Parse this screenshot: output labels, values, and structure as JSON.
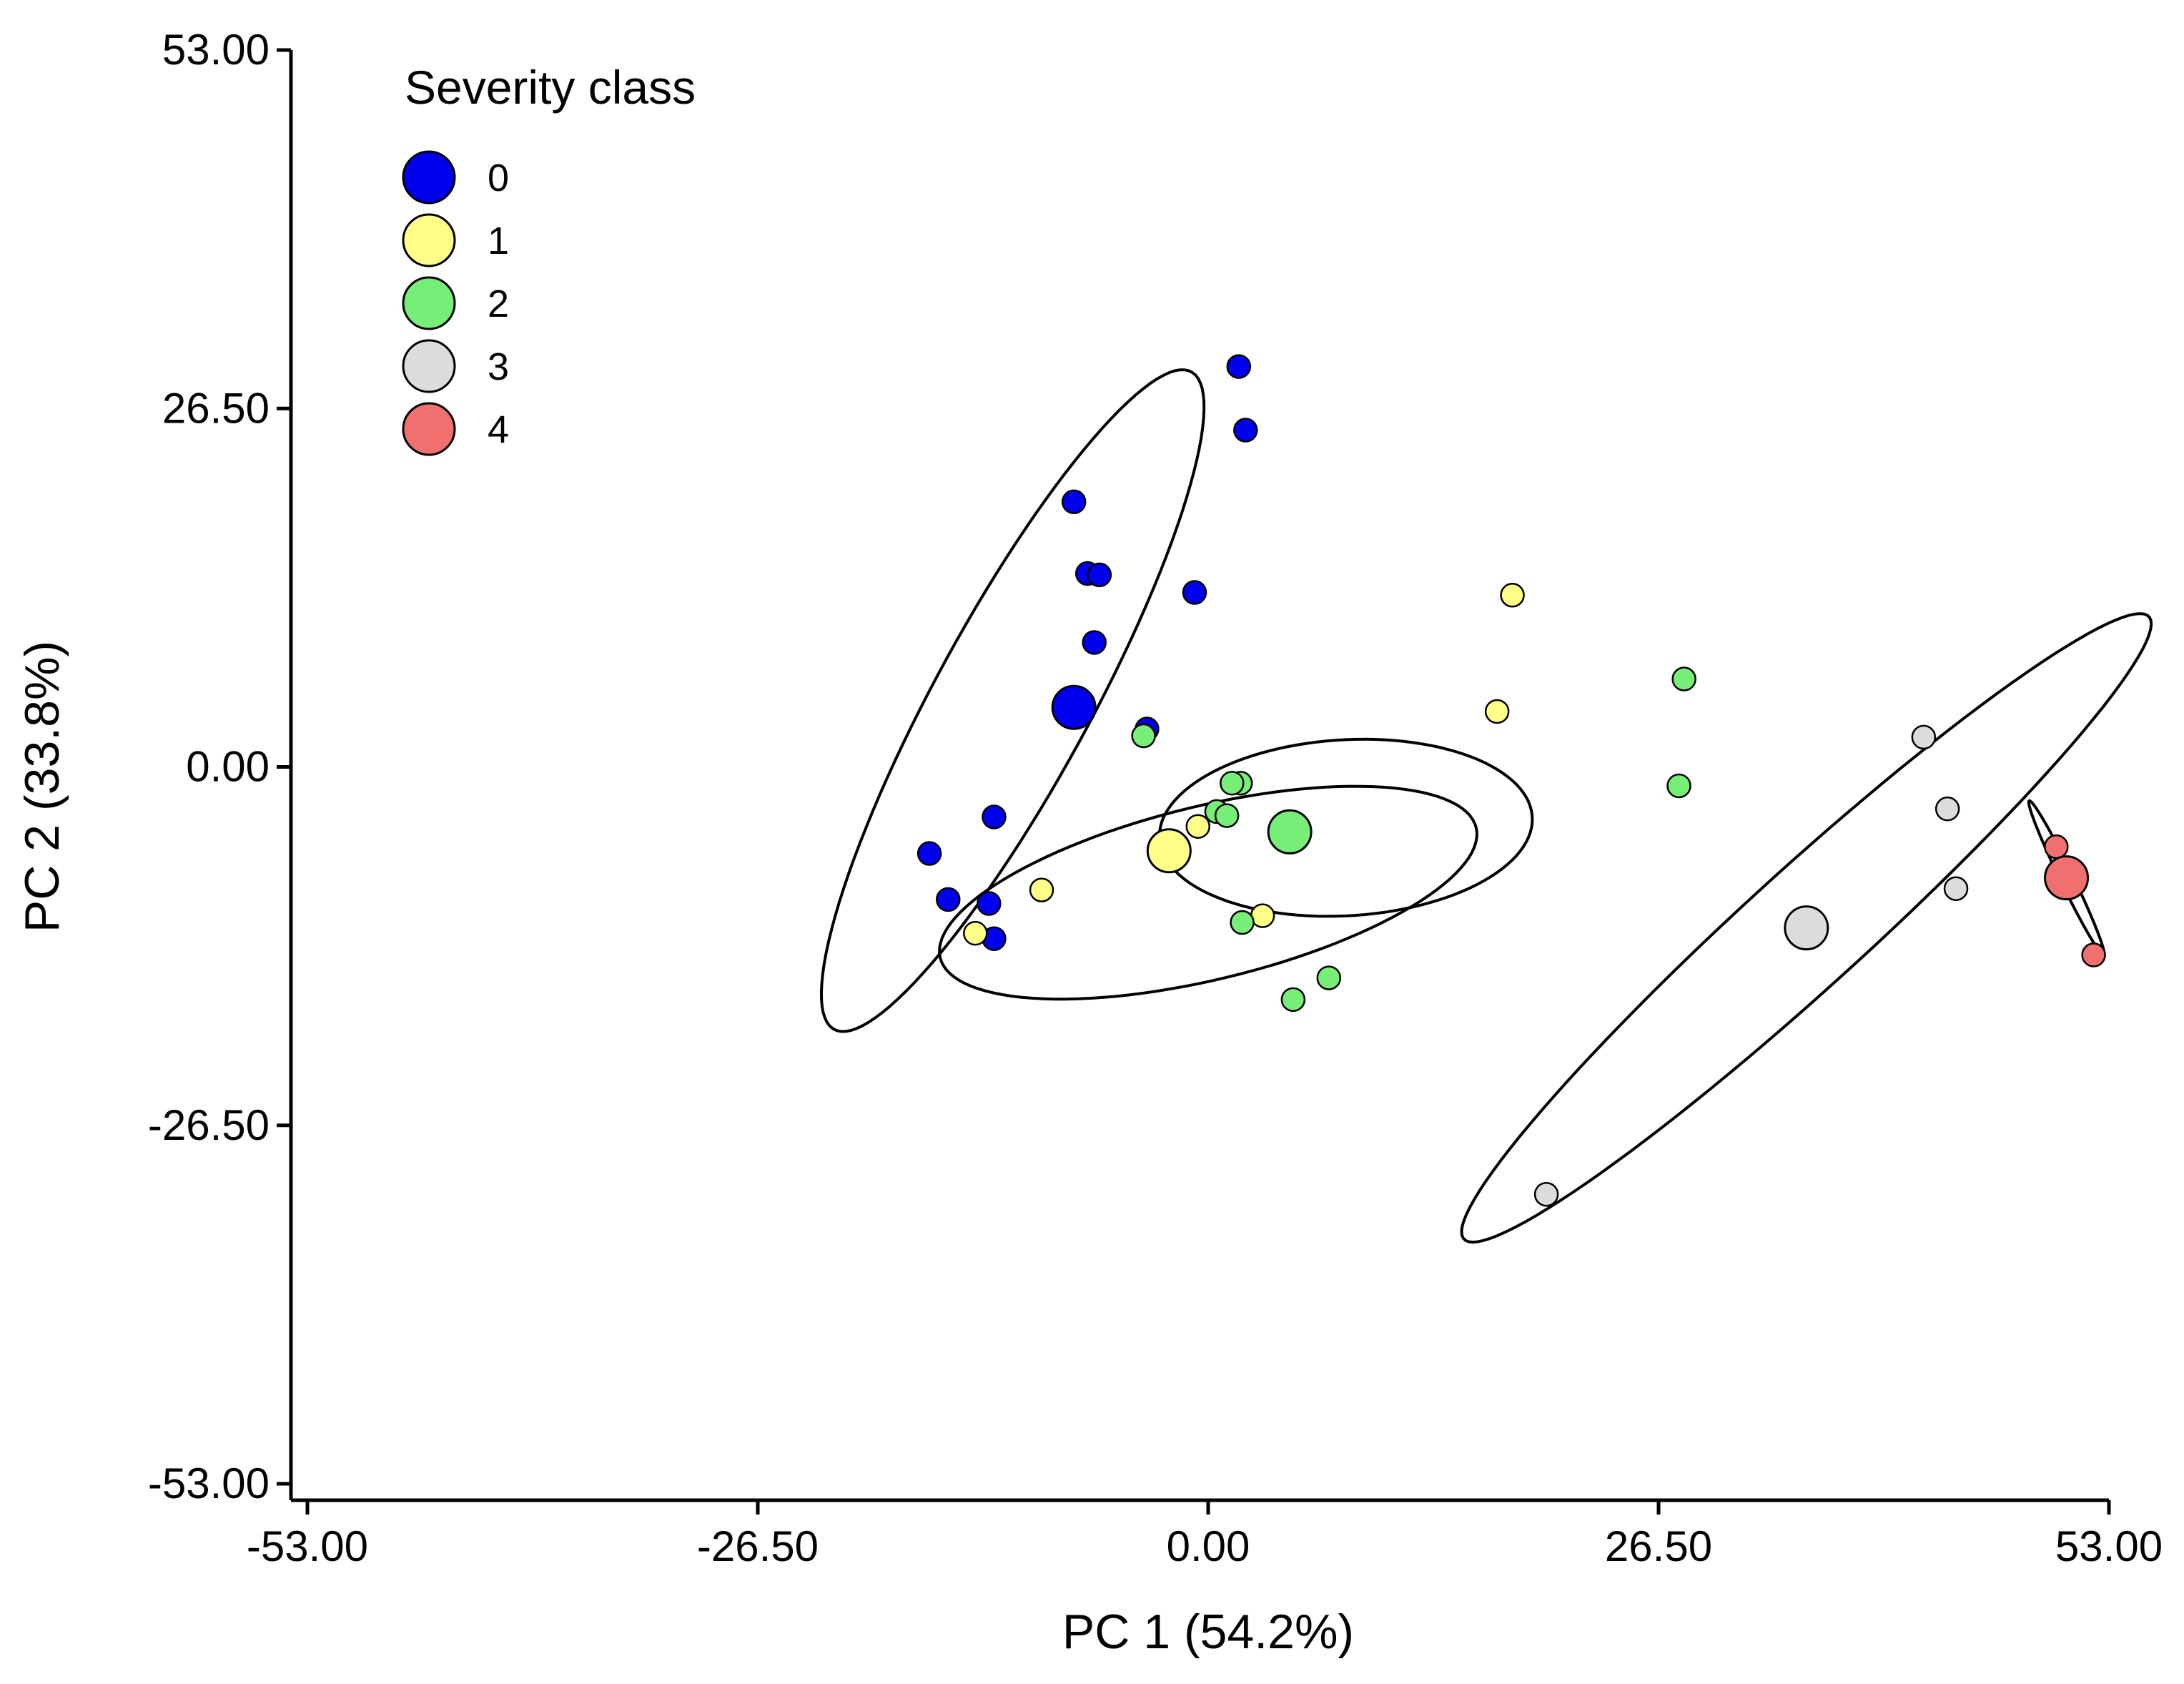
{
  "chart_data": {
    "type": "scatter",
    "xlabel": "PC 1 (54.2%)",
    "ylabel": "PC 2 (33.8%)",
    "xlim": [
      -53.0,
      53.0
    ],
    "ylim": [
      -53.0,
      53.0
    ],
    "xticks": [
      "-53.00",
      "-26.50",
      "0.00",
      "26.50",
      "53.00"
    ],
    "yticks": [
      "53.00",
      "26.50",
      "0.00",
      "-26.50",
      "-53.00"
    ],
    "legend": {
      "title": "Severity class",
      "position": "top-left",
      "entries": [
        {
          "label": "0",
          "color": "#0000ee"
        },
        {
          "label": "1",
          "color": "#ffff88"
        },
        {
          "label": "2",
          "color": "#77ee77"
        },
        {
          "label": "3",
          "color": "#dcdcdc"
        },
        {
          "label": "4",
          "color": "#f07070"
        }
      ]
    },
    "series": [
      {
        "name": "0",
        "color": "#0000ee",
        "centroid": [
          -7.9,
          4.4
        ],
        "points": [
          [
            1.8,
            29.6
          ],
          [
            2.2,
            24.9
          ],
          [
            -7.9,
            19.6
          ],
          [
            -7.1,
            14.3
          ],
          [
            -6.4,
            14.2
          ],
          [
            -6.7,
            9.2
          ],
          [
            -0.8,
            12.9
          ],
          [
            -3.6,
            2.8
          ],
          [
            -16.4,
            -6.4
          ],
          [
            -15.3,
            -9.8
          ],
          [
            -12.6,
            -3.7
          ],
          [
            -12.9,
            -10.1
          ],
          [
            -12.6,
            -12.7
          ]
        ],
        "ellipse": {
          "center": [
            -11.5,
            4.9
          ],
          "major_radius": 26.5,
          "minor_radius": 4.8,
          "angle_deg": 67
        }
      },
      {
        "name": "1",
        "color": "#ffff88",
        "centroid": [
          -2.3,
          -6.2
        ],
        "points": [
          [
            17.9,
            12.7
          ],
          [
            17.0,
            4.1
          ],
          [
            -0.6,
            -4.4
          ],
          [
            -9.8,
            -9.1
          ],
          [
            -13.7,
            -12.3
          ],
          [
            3.2,
            -11.0
          ]
        ],
        "ellipse": {
          "center": [
            0.0,
            -9.3
          ],
          "major_radius": 16.5,
          "minor_radius": 6.3,
          "angle_deg": 18
        }
      },
      {
        "name": "2",
        "color": "#77ee77",
        "centroid": [
          4.8,
          -4.8
        ],
        "points": [
          [
            28.0,
            6.5
          ],
          [
            27.7,
            -1.4
          ],
          [
            -3.8,
            2.3
          ],
          [
            1.9,
            -1.2
          ],
          [
            1.4,
            -1.2
          ],
          [
            0.5,
            -3.3
          ],
          [
            1.1,
            -3.6
          ],
          [
            2.0,
            -11.5
          ],
          [
            7.1,
            -15.6
          ],
          [
            5.0,
            -17.2
          ]
        ],
        "ellipse": {
          "center": [
            8.1,
            -4.5
          ],
          "major_radius": 11.0,
          "minor_radius": 6.5,
          "angle_deg": 5
        }
      },
      {
        "name": "3",
        "color": "#dcdcdc",
        "centroid": [
          35.2,
          -11.9
        ],
        "points": [
          [
            42.1,
            2.2
          ],
          [
            43.5,
            -3.1
          ],
          [
            44.0,
            -9.0
          ],
          [
            19.9,
            -31.6
          ]
        ],
        "ellipse": {
          "center": [
            35.2,
            -11.9
          ],
          "major_radius": 30.6,
          "minor_radius": 3.9,
          "angle_deg": 49
        }
      },
      {
        "name": "4",
        "color": "#f07070",
        "centroid": [
          50.5,
          -8.2
        ],
        "points": [
          [
            49.9,
            -5.9
          ],
          [
            52.1,
            -13.9
          ]
        ],
        "ellipse": {
          "center": [
            50.5,
            -8.2
          ],
          "major_radius": 6.1,
          "minor_radius": 0.4,
          "angle_deg": -69
        }
      }
    ]
  }
}
